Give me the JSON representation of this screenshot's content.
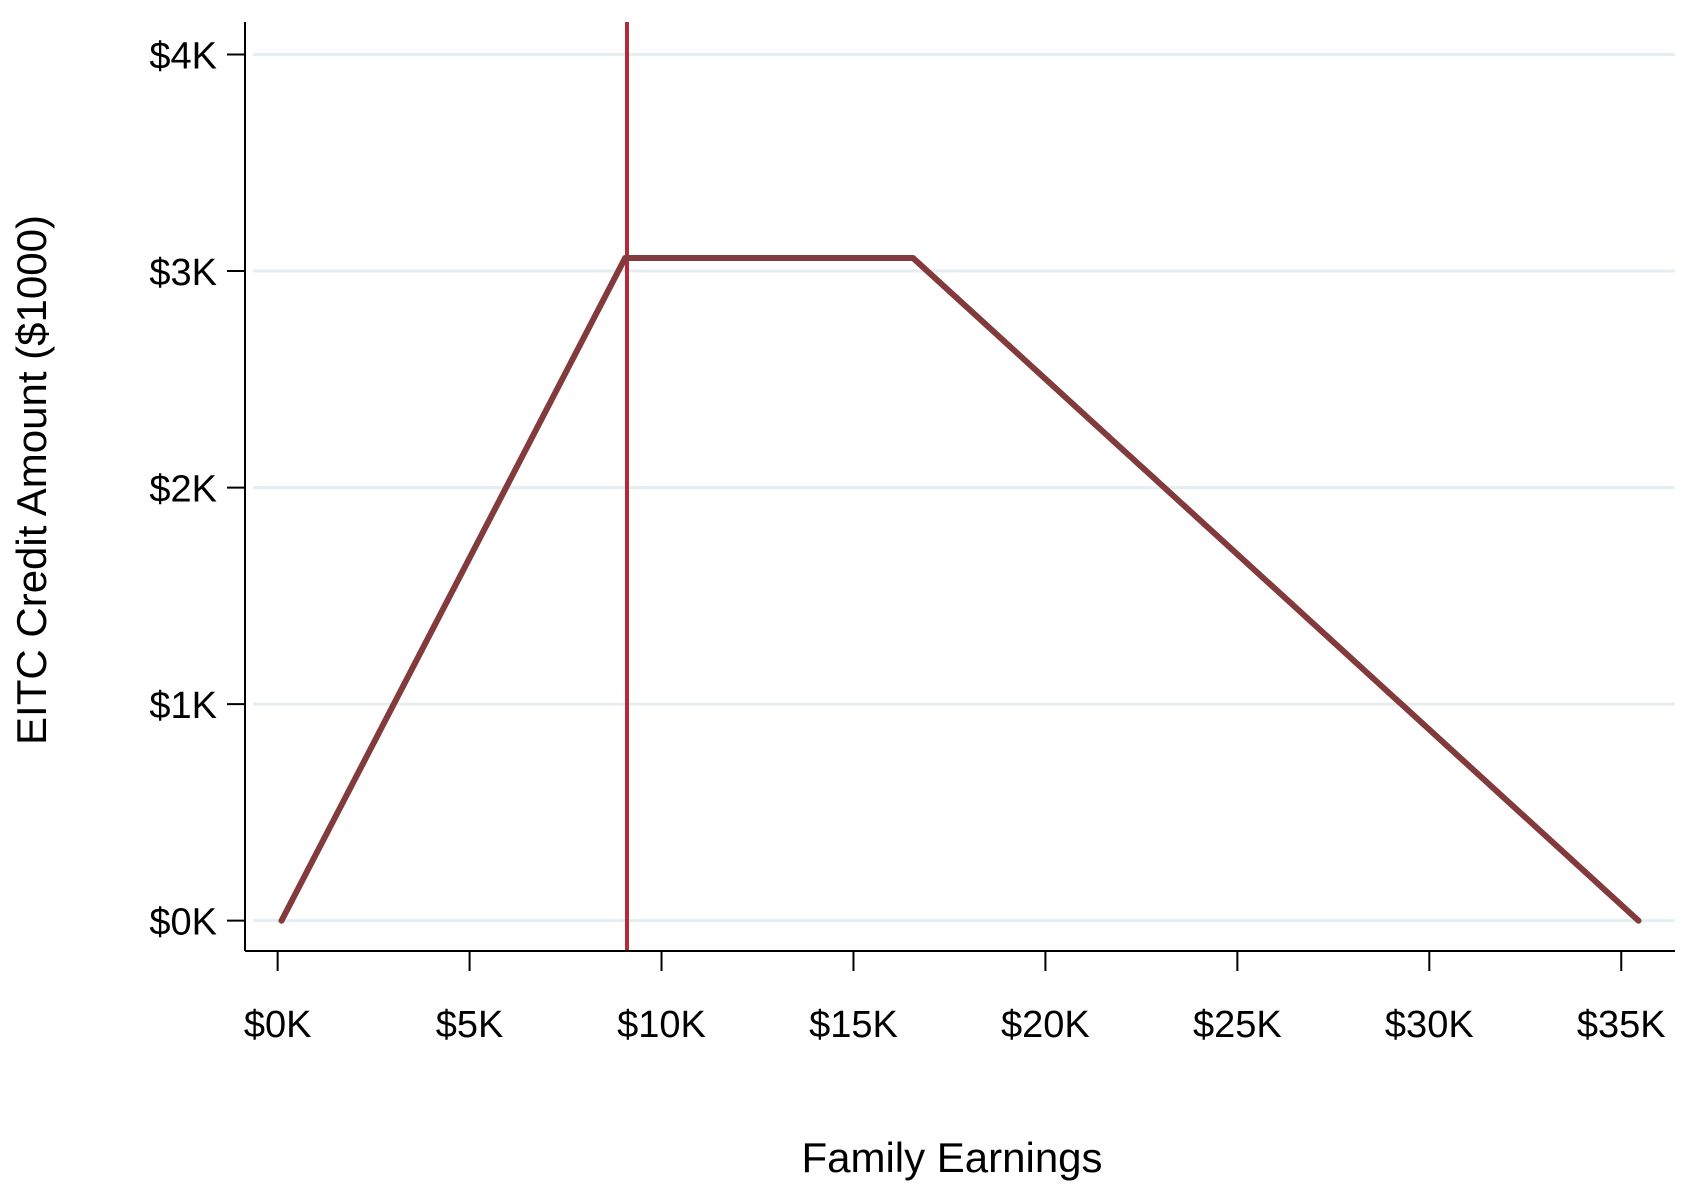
{
  "chart_data": {
    "type": "line",
    "title": "",
    "xlabel": "Family Earnings",
    "ylabel": "EITC Credit Amount ($1000)",
    "xlim": [
      -0.85,
      36.4
    ],
    "ylim": [
      -0.14,
      4.15
    ],
    "x_ticks": [
      0,
      5,
      10,
      15,
      20,
      25,
      30,
      35
    ],
    "x_tick_labels": [
      "$0K",
      "$5K",
      "$10K",
      "$15K",
      "$20K",
      "$25K",
      "$30K",
      "$35K"
    ],
    "y_ticks": [
      0,
      1,
      2,
      3,
      4
    ],
    "y_tick_labels": [
      "$0K",
      "$1K",
      "$2K",
      "$3K",
      "$4K"
    ],
    "grid": "horizontal",
    "legend": "none",
    "series": [
      {
        "x": [
          0.1,
          9.05,
          16.55,
          35.45
        ],
        "y": [
          0.0,
          3.06,
          3.06,
          0.0
        ],
        "color": "#833a3d"
      }
    ],
    "reference_lines": [
      {
        "orientation": "vertical",
        "x": 9.1,
        "color": "#b02a3b"
      }
    ],
    "colors": {
      "series": "#833a3d",
      "reference_line": "#b02a3b",
      "gridline": "#e6edf0",
      "axis": "#000000"
    }
  }
}
